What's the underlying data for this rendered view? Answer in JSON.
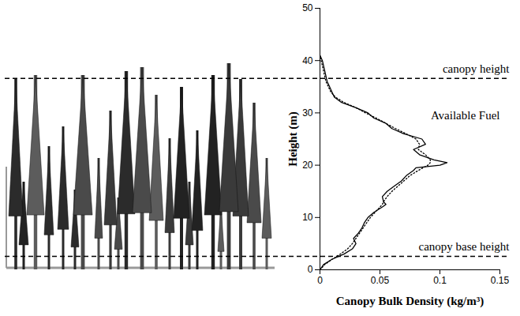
{
  "chart_data": {
    "type": "line",
    "xlabel": "Canopy Bulk Density (kg/m³)",
    "ylabel": "Height (m)",
    "y": [
      0,
      1,
      2,
      3,
      4,
      5,
      6,
      7,
      8,
      9,
      10,
      11,
      12,
      12.5,
      13,
      14,
      15,
      16,
      17,
      18,
      19,
      19.5,
      20,
      20.5,
      21,
      22,
      23,
      24,
      25,
      26,
      27,
      28,
      29,
      30,
      31,
      32,
      33,
      34,
      35,
      36,
      38,
      40,
      41
    ],
    "series": [
      {
        "color": "#000000",
        "line_style": "solid",
        "values": [
          0,
          0.003,
          0.01,
          0.02,
          0.027,
          0.03,
          0.028,
          0.032,
          0.035,
          0.037,
          0.04,
          0.045,
          0.052,
          0.055,
          0.053,
          0.052,
          0.056,
          0.062,
          0.068,
          0.072,
          0.078,
          0.08,
          0.1,
          0.106,
          0.095,
          0.083,
          0.078,
          0.088,
          0.085,
          0.07,
          0.06,
          0.055,
          0.045,
          0.04,
          0.03,
          0.018,
          0.012,
          0.01,
          0.008,
          0.006,
          0.004,
          0.002,
          0
        ]
      },
      {
        "color": "#000000",
        "line_style": "dotted",
        "values": [
          0,
          0.004,
          0.01,
          0.017,
          0.023,
          0.027,
          0.03,
          0.033,
          0.036,
          0.039,
          0.042,
          0.046,
          0.05,
          0.052,
          0.053,
          0.056,
          0.06,
          0.065,
          0.07,
          0.075,
          0.082,
          0.086,
          0.09,
          0.092,
          0.092,
          0.088,
          0.082,
          0.083,
          0.08,
          0.072,
          0.063,
          0.055,
          0.047,
          0.038,
          0.03,
          0.02,
          0.013,
          0.009,
          0.007,
          0.005,
          0.003,
          0.001,
          0
        ]
      }
    ],
    "xlim": [
      0,
      0.15
    ],
    "xticks": [
      0,
      0.05,
      0.1,
      0.15
    ],
    "ylim": [
      0,
      50
    ],
    "yticks": [
      0,
      10,
      20,
      30,
      40,
      50
    ],
    "grid": false,
    "annotations": [
      {
        "text": "canopy height",
        "y": 36.5,
        "line_style": "dashed"
      },
      {
        "text": "canopy base height",
        "y": 2.5,
        "line_style": "dashed"
      },
      {
        "text": "Available Fuel"
      }
    ]
  }
}
